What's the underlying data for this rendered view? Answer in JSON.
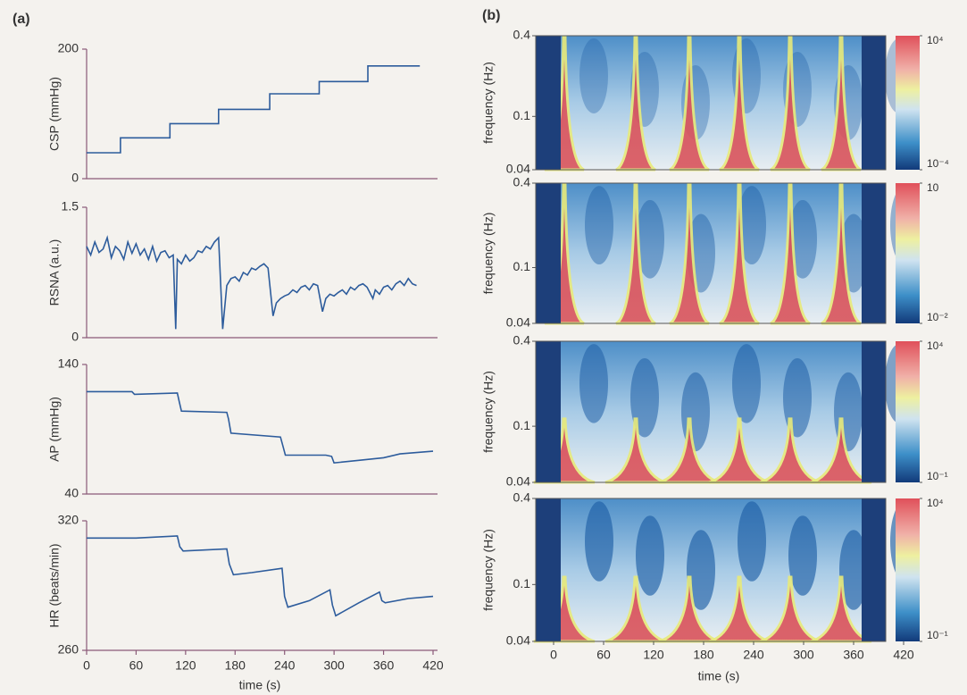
{
  "panel_labels": [
    "(a)",
    "(b)"
  ],
  "chart_data": [
    {
      "type": "line",
      "y_label": "CSP (mmHg)",
      "color": "#2d5c9c",
      "x": [
        0,
        41,
        41,
        101,
        101,
        160,
        160,
        222,
        222,
        282,
        282,
        341,
        341,
        404
      ],
      "values": [
        40,
        40,
        63,
        63,
        85,
        85,
        107,
        107,
        131,
        131,
        150,
        150,
        174,
        174
      ],
      "xlim": [
        0,
        420
      ],
      "ylim": [
        0,
        200
      ],
      "yticks": [
        0,
        200
      ]
    },
    {
      "type": "line",
      "y_label": "RSNA (a.u.)",
      "color": "#2d5c9c",
      "x": [
        0,
        5,
        10,
        15,
        20,
        25,
        30,
        35,
        40,
        45,
        50,
        55,
        60,
        65,
        70,
        75,
        80,
        85,
        90,
        95,
        100,
        105,
        108,
        110,
        115,
        120,
        125,
        130,
        135,
        140,
        145,
        150,
        155,
        160,
        165,
        170,
        175,
        180,
        185,
        190,
        195,
        200,
        205,
        210,
        215,
        220,
        226,
        230,
        235,
        240,
        245,
        250,
        255,
        260,
        265,
        270,
        275,
        280,
        286,
        290,
        295,
        300,
        305,
        310,
        315,
        320,
        325,
        330,
        335,
        340,
        347,
        350,
        355,
        360,
        365,
        370,
        375,
        380,
        385,
        390,
        395,
        400
      ],
      "values": [
        1.05,
        0.95,
        1.1,
        0.98,
        1.02,
        1.15,
        0.92,
        1.05,
        1.0,
        0.9,
        1.1,
        0.97,
        1.08,
        0.95,
        1.02,
        0.9,
        1.05,
        0.88,
        0.98,
        1.0,
        0.92,
        0.95,
        0.1,
        0.9,
        0.85,
        0.95,
        0.88,
        0.92,
        1.0,
        0.98,
        1.05,
        1.02,
        1.1,
        1.15,
        0.1,
        0.6,
        0.68,
        0.7,
        0.65,
        0.75,
        0.72,
        0.8,
        0.78,
        0.82,
        0.85,
        0.8,
        0.25,
        0.4,
        0.45,
        0.48,
        0.5,
        0.55,
        0.52,
        0.58,
        0.6,
        0.55,
        0.62,
        0.6,
        0.3,
        0.45,
        0.5,
        0.48,
        0.52,
        0.55,
        0.5,
        0.58,
        0.55,
        0.6,
        0.62,
        0.58,
        0.45,
        0.55,
        0.5,
        0.58,
        0.6,
        0.55,
        0.62,
        0.65,
        0.6,
        0.68,
        0.62,
        0.6
      ],
      "xlim": [
        0,
        420
      ],
      "ylim": [
        0,
        1.5
      ],
      "yticks": [
        0,
        1.5
      ]
    },
    {
      "type": "line",
      "y_label": "AP (mmHg)",
      "color": "#2d5c9c",
      "x": [
        0,
        55,
        58,
        110,
        112,
        115,
        170,
        172,
        175,
        235,
        238,
        241,
        290,
        297,
        300,
        330,
        360,
        380,
        420
      ],
      "values": [
        119,
        119,
        117,
        118,
        112,
        104,
        103,
        98,
        87,
        84,
        77,
        70,
        70,
        69,
        64,
        66,
        68,
        71,
        73
      ],
      "xlim": [
        0,
        420
      ],
      "ylim": [
        40,
        140
      ],
      "yticks": [
        40,
        140
      ]
    },
    {
      "type": "line",
      "y_label": "HR (beats/min)",
      "x_label": "time (s)",
      "color": "#2d5c9c",
      "x": [
        0,
        60,
        110,
        113,
        117,
        170,
        173,
        178,
        200,
        237,
        240,
        244,
        270,
        295,
        298,
        302,
        330,
        355,
        358,
        362,
        390,
        420
      ],
      "values": [
        312,
        312,
        313,
        308,
        306,
        307,
        300,
        295,
        296,
        298,
        285,
        280,
        283,
        288,
        281,
        276,
        282,
        287,
        283,
        282,
        284,
        285
      ],
      "xlim": [
        0,
        420
      ],
      "ylim": [
        260,
        320
      ],
      "yticks": [
        260,
        320
      ],
      "xticks": [
        0,
        60,
        120,
        180,
        240,
        300,
        360,
        420
      ]
    },
    {
      "type": "spectrogram",
      "y_label": "frequency (Hz)",
      "log_y": true,
      "ylim": [
        0.04,
        0.4
      ],
      "yticks": [
        0.04,
        0.1,
        0.4
      ],
      "colorbar_ticks": [
        {
          "value": 10000,
          "label": "10⁴"
        },
        {
          "value": 0.0001,
          "label": "10⁻⁴"
        }
      ]
    },
    {
      "type": "spectrogram",
      "y_label": "frequency (Hz)",
      "log_y": true,
      "ylim": [
        0.04,
        0.4
      ],
      "yticks": [
        0.04,
        0.1,
        0.4
      ],
      "colorbar_ticks": [
        {
          "value": 10,
          "label": "10"
        },
        {
          "value": 0.01,
          "label": "10⁻²"
        }
      ]
    },
    {
      "type": "spectrogram",
      "y_label": "frequency (Hz)",
      "log_y": true,
      "ylim": [
        0.04,
        0.4
      ],
      "yticks": [
        0.04,
        0.1,
        0.4
      ],
      "colorbar_ticks": [
        {
          "value": 10000,
          "label": "10⁴"
        },
        {
          "value": 0.1,
          "label": "10⁻¹"
        }
      ]
    },
    {
      "type": "spectrogram",
      "y_label": "frequency (Hz)",
      "x_label": "time (s)",
      "log_y": true,
      "ylim": [
        0.04,
        0.4
      ],
      "yticks": [
        0.04,
        0.1,
        0.4
      ],
      "xlim": [
        0,
        420
      ],
      "xticks": [
        0,
        60,
        120,
        180,
        240,
        300,
        360,
        420
      ],
      "colorbar_ticks": [
        {
          "value": 10000,
          "label": "10⁴"
        },
        {
          "value": 0.1,
          "label": "10⁻¹"
        }
      ]
    }
  ]
}
